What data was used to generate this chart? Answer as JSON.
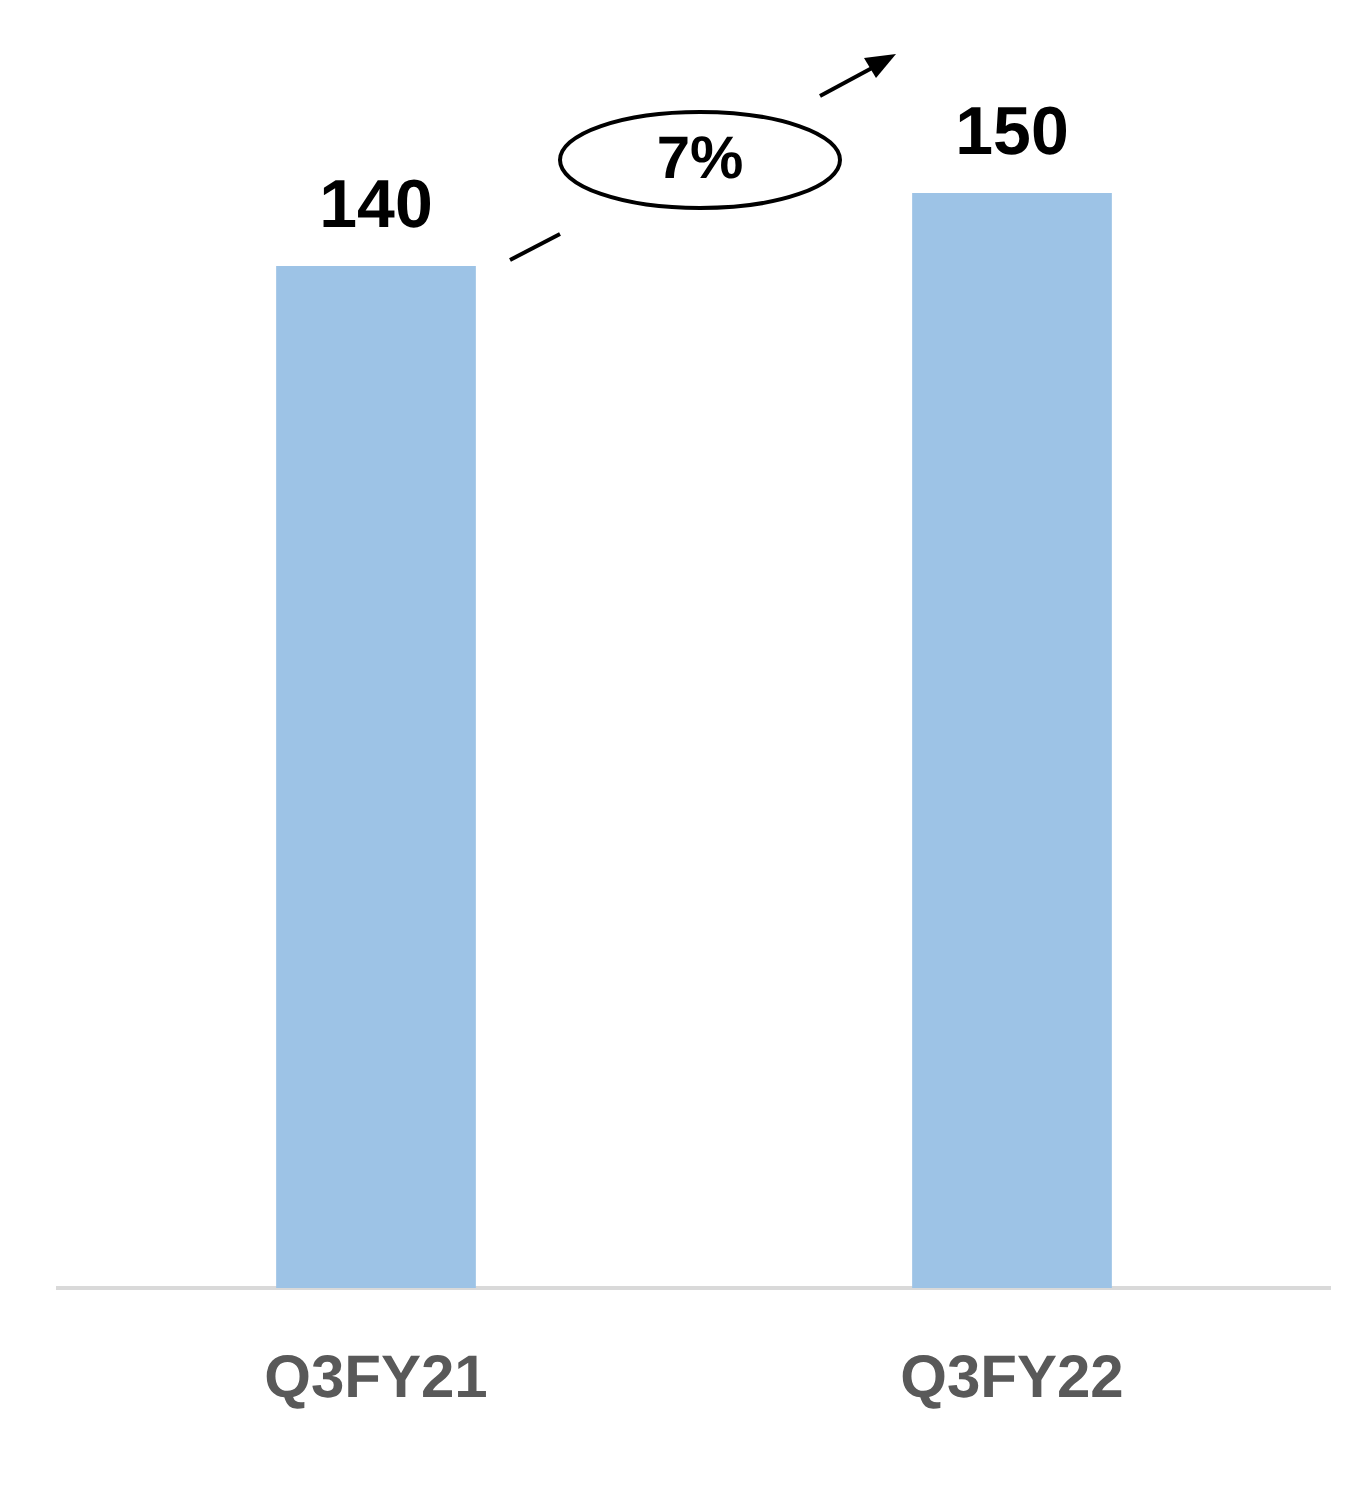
{
  "chart_data": {
    "type": "bar",
    "categories": [
      "Q3FY21",
      "Q3FY22"
    ],
    "values": [
      140,
      150
    ],
    "color": "#9dc3e6",
    "data_labels": true,
    "tick_labels": "x",
    "grid": false,
    "legend": false,
    "annotations": [
      "7%"
    ]
  }
}
